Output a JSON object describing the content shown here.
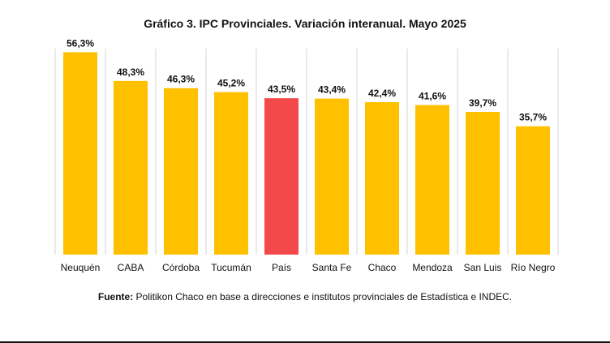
{
  "chart_data": {
    "type": "bar",
    "title": "Gráfico 3. IPC Provinciales. Variación interanual. Mayo 2025",
    "categories": [
      "Neuquén",
      "CABA",
      "Córdoba",
      "Tucumán",
      "País",
      "Santa Fe",
      "Chaco",
      "Mendoza",
      "San Luis",
      "Río Negro"
    ],
    "values": [
      56.3,
      48.3,
      46.3,
      45.2,
      43.5,
      43.4,
      42.4,
      41.6,
      39.7,
      35.7
    ],
    "value_labels": [
      "56,3%",
      "48,3%",
      "46,3%",
      "45,2%",
      "43,5%",
      "43,4%",
      "42,4%",
      "41,6%",
      "39,7%",
      "35,7%"
    ],
    "highlight_category": "País",
    "xlabel": "",
    "ylabel": "",
    "ylim": [
      0,
      60
    ],
    "grid": "vertical separators between categories",
    "legend": "none"
  },
  "colors": {
    "bar": "#FFC000",
    "highlight": "#F4494B",
    "gridline": "#D4D4D4",
    "text": "#111111"
  },
  "source": {
    "label": "Fuente:",
    "text": " Politikon Chaco en base a direcciones e institutos provinciales de Estadística e INDEC."
  }
}
